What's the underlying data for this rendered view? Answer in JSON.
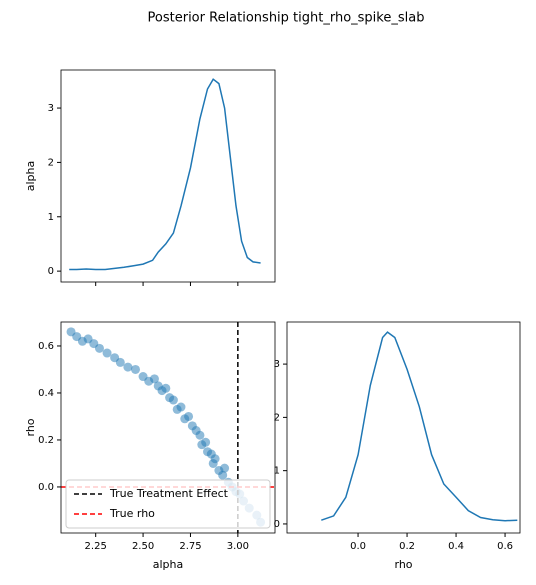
{
  "title": "Posterior Relationship tight_rho_spike_slab",
  "chart_data": [
    {
      "type": "line",
      "ylabel": "alpha",
      "x": [
        2.11,
        2.15,
        2.2,
        2.25,
        2.3,
        2.35,
        2.4,
        2.45,
        2.5,
        2.55,
        2.58,
        2.62,
        2.66,
        2.7,
        2.75,
        2.8,
        2.84,
        2.87,
        2.9,
        2.93,
        2.96,
        2.99,
        3.02,
        3.05,
        3.08,
        3.12
      ],
      "values": [
        0.03,
        0.03,
        0.04,
        0.03,
        0.03,
        0.05,
        0.07,
        0.1,
        0.13,
        0.2,
        0.35,
        0.5,
        0.7,
        1.2,
        1.9,
        2.8,
        3.35,
        3.53,
        3.45,
        3.0,
        2.1,
        1.2,
        0.55,
        0.25,
        0.17,
        0.15
      ],
      "color": "#1f77b4",
      "xlim": [
        2.067,
        3.196
      ],
      "ylim": [
        -0.2,
        3.7
      ],
      "xticks": [
        2.25,
        2.5,
        2.75,
        3.0
      ],
      "yticks": [
        0,
        1,
        2,
        3
      ]
    },
    {
      "type": "scatter",
      "xlabel": "alpha",
      "ylabel": "rho",
      "x": [
        2.12,
        2.15,
        2.18,
        2.21,
        2.24,
        2.27,
        2.31,
        2.35,
        2.38,
        2.42,
        2.46,
        2.5,
        2.53,
        2.56,
        2.58,
        2.6,
        2.62,
        2.64,
        2.66,
        2.68,
        2.7,
        2.72,
        2.74,
        2.76,
        2.78,
        2.8,
        2.81,
        2.83,
        2.84,
        2.86,
        2.87,
        2.88,
        2.9,
        2.92,
        2.93,
        2.95,
        2.97,
        2.99,
        3.01,
        3.03,
        3.06,
        3.1,
        3.12
      ],
      "values": [
        0.66,
        0.64,
        0.62,
        0.63,
        0.61,
        0.59,
        0.57,
        0.55,
        0.53,
        0.51,
        0.5,
        0.47,
        0.45,
        0.46,
        0.43,
        0.41,
        0.42,
        0.38,
        0.37,
        0.33,
        0.34,
        0.29,
        0.3,
        0.26,
        0.24,
        0.22,
        0.18,
        0.19,
        0.15,
        0.14,
        0.1,
        0.12,
        0.07,
        0.05,
        0.08,
        0.02,
        0.0,
        -0.02,
        -0.03,
        -0.06,
        -0.09,
        -0.12,
        -0.15
      ],
      "color": "#1f77b4",
      "xlim": [
        2.067,
        3.196
      ],
      "ylim": [
        -0.196,
        0.702
      ],
      "xticks": [
        2.25,
        {
          "value": 2.5,
          "label": "2.50"
        },
        2.75,
        {
          "value": 3.0,
          "label": "3.00"
        }
      ],
      "yticks": [
        {
          "value": 0,
          "label": "0.0"
        },
        0.2,
        0.4,
        0.6
      ],
      "vlines": [
        {
          "value": 3.0,
          "color": "#000000",
          "name": "True Treatment Effect"
        }
      ],
      "hlines": [
        {
          "value": 0,
          "color": "#ff0000",
          "name": "True rho"
        }
      ],
      "legend": "lower left"
    },
    {
      "type": "line",
      "xlabel": "rho",
      "x": [
        -0.15,
        -0.1,
        -0.05,
        0.0,
        0.05,
        0.1,
        0.12,
        0.15,
        0.2,
        0.25,
        0.3,
        0.35,
        0.4,
        0.45,
        0.5,
        0.55,
        0.6,
        0.65
      ],
      "values": [
        0.07,
        0.15,
        0.5,
        1.3,
        2.6,
        3.5,
        3.6,
        3.5,
        2.9,
        2.2,
        1.3,
        0.75,
        0.5,
        0.25,
        0.12,
        0.08,
        0.06,
        0.07
      ],
      "color": "#1f77b4",
      "xlim": [
        -0.29,
        0.661
      ],
      "ylim": [
        -0.17,
        3.79
      ],
      "xticks": [
        {
          "value": 0,
          "label": "0.0"
        },
        0.2,
        0.4,
        0.6
      ],
      "yticks": [
        0,
        1,
        2,
        3
      ]
    }
  ]
}
